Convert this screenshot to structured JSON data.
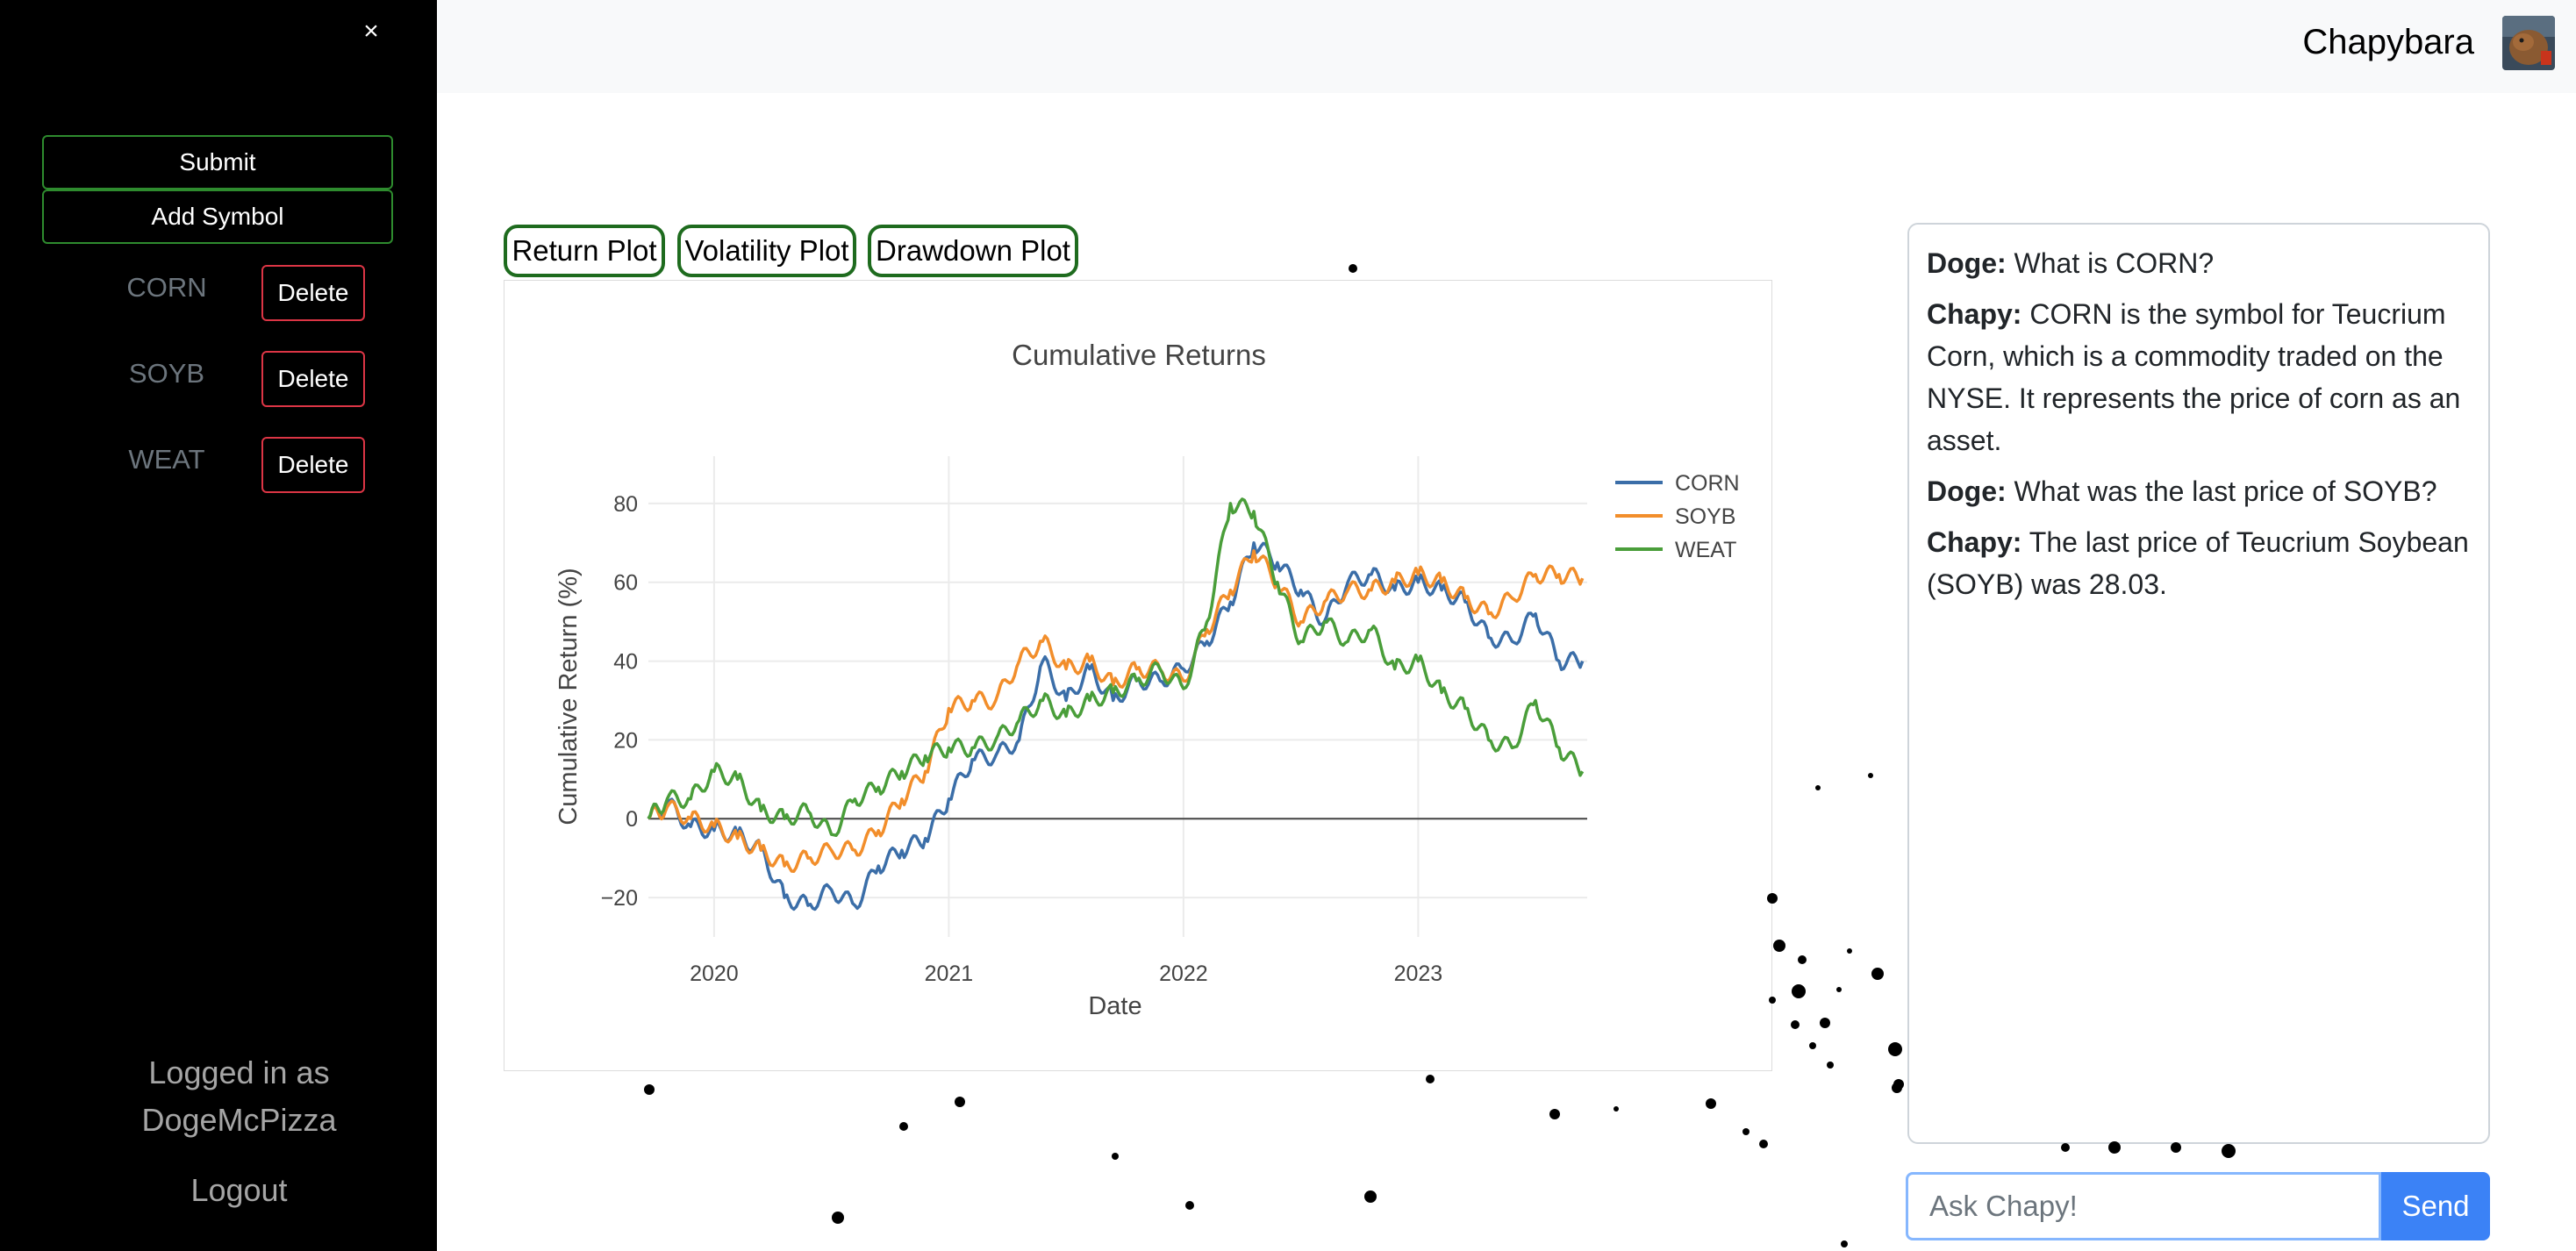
{
  "sidebar": {
    "close_label": "×",
    "submit_label": "Submit",
    "add_symbol_label": "Add Symbol",
    "symbols": [
      {
        "symbol": "CORN",
        "delete_label": "Delete"
      },
      {
        "symbol": "SOYB",
        "delete_label": "Delete"
      },
      {
        "symbol": "WEAT",
        "delete_label": "Delete"
      }
    ],
    "logged_in_line1": "Logged in as",
    "logged_in_user": "DogeMcPizza",
    "logout_label": "Logout"
  },
  "header": {
    "brand": "Chapybara",
    "avatar_icon": "capybara-avatar"
  },
  "plot_tabs": [
    {
      "label": "Return Plot"
    },
    {
      "label": "Volatility Plot"
    },
    {
      "label": "Drawdown Plot"
    }
  ],
  "chat": {
    "messages": [
      {
        "sender": "Doge:",
        "text": "What is CORN?"
      },
      {
        "sender": "Chapy:",
        "text": "CORN is the symbol for Teucrium Corn, which is a commodity traded on the NYSE. It represents the price of corn as an asset."
      },
      {
        "sender": "Doge:",
        "text": "What was the last price of SOYB?"
      },
      {
        "sender": "Chapy:",
        "text": "The last price of Teucrium Soybean (SOYB) was 28.03."
      }
    ],
    "input_placeholder": "Ask Chapy!",
    "send_label": "Send"
  },
  "colors": {
    "corn": "#3b6ea8",
    "soyb": "#f28e2b",
    "weat": "#4a9e3a",
    "send": "#3b82f6",
    "delete_border": "#dc3545",
    "sidebar_button_border": "#2e8b2e"
  },
  "chart_data": {
    "type": "line",
    "title": "Cumulative Returns",
    "xlabel": "Date",
    "ylabel": "Cumulative Return (%)",
    "xlim": [
      2019.72,
      2023.72
    ],
    "ylim": [
      -30,
      92
    ],
    "x_ticks": [
      2020,
      2021,
      2022,
      2023
    ],
    "x_tick_labels": [
      "2020",
      "2021",
      "2022",
      "2023"
    ],
    "y_ticks": [
      -20,
      0,
      20,
      40,
      60,
      80
    ],
    "y_tick_labels": [
      "−20",
      "0",
      "20",
      "40",
      "60",
      "80"
    ],
    "legend_position": "top-right",
    "grid": true,
    "zero_line": true,
    "x": [
      2019.72,
      2019.8,
      2019.9,
      2020.0,
      2020.1,
      2020.2,
      2020.3,
      2020.4,
      2020.5,
      2020.6,
      2020.7,
      2020.8,
      2020.9,
      2021.0,
      2021.1,
      2021.2,
      2021.3,
      2021.4,
      2021.5,
      2021.6,
      2021.7,
      2021.8,
      2021.9,
      2022.0,
      2022.1,
      2022.2,
      2022.3,
      2022.4,
      2022.5,
      2022.6,
      2022.7,
      2022.8,
      2022.9,
      2023.0,
      2023.1,
      2023.2,
      2023.3,
      2023.4,
      2023.5,
      2023.6,
      2023.7
    ],
    "series": [
      {
        "name": "CORN",
        "color": "#3b6ea8",
        "values": [
          0,
          4,
          -2,
          -3,
          -4,
          -8,
          -20,
          -22,
          -18,
          -22,
          -12,
          -8,
          -5,
          5,
          15,
          16,
          20,
          40,
          30,
          38,
          30,
          35,
          35,
          38,
          45,
          55,
          70,
          65,
          58,
          50,
          60,
          62,
          58,
          60,
          58,
          55,
          46,
          45,
          52,
          40,
          40
        ]
      },
      {
        "name": "SOYB",
        "color": "#f28e2b",
        "values": [
          0,
          3,
          0,
          -2,
          -5,
          -8,
          -12,
          -10,
          -8,
          -8,
          -3,
          5,
          12,
          28,
          30,
          30,
          40,
          45,
          38,
          40,
          34,
          38,
          38,
          35,
          48,
          58,
          68,
          60,
          50,
          55,
          58,
          58,
          60,
          62,
          60,
          56,
          52,
          56,
          62,
          62,
          61
        ]
      },
      {
        "name": "WEAT",
        "color": "#4a9e3a",
        "values": [
          0,
          5,
          5,
          12,
          10,
          2,
          0,
          2,
          -4,
          5,
          8,
          12,
          16,
          18,
          18,
          20,
          25,
          30,
          26,
          30,
          32,
          35,
          38,
          33,
          50,
          80,
          78,
          60,
          45,
          50,
          45,
          48,
          38,
          40,
          32,
          28,
          20,
          18,
          30,
          18,
          12
        ]
      }
    ]
  }
}
